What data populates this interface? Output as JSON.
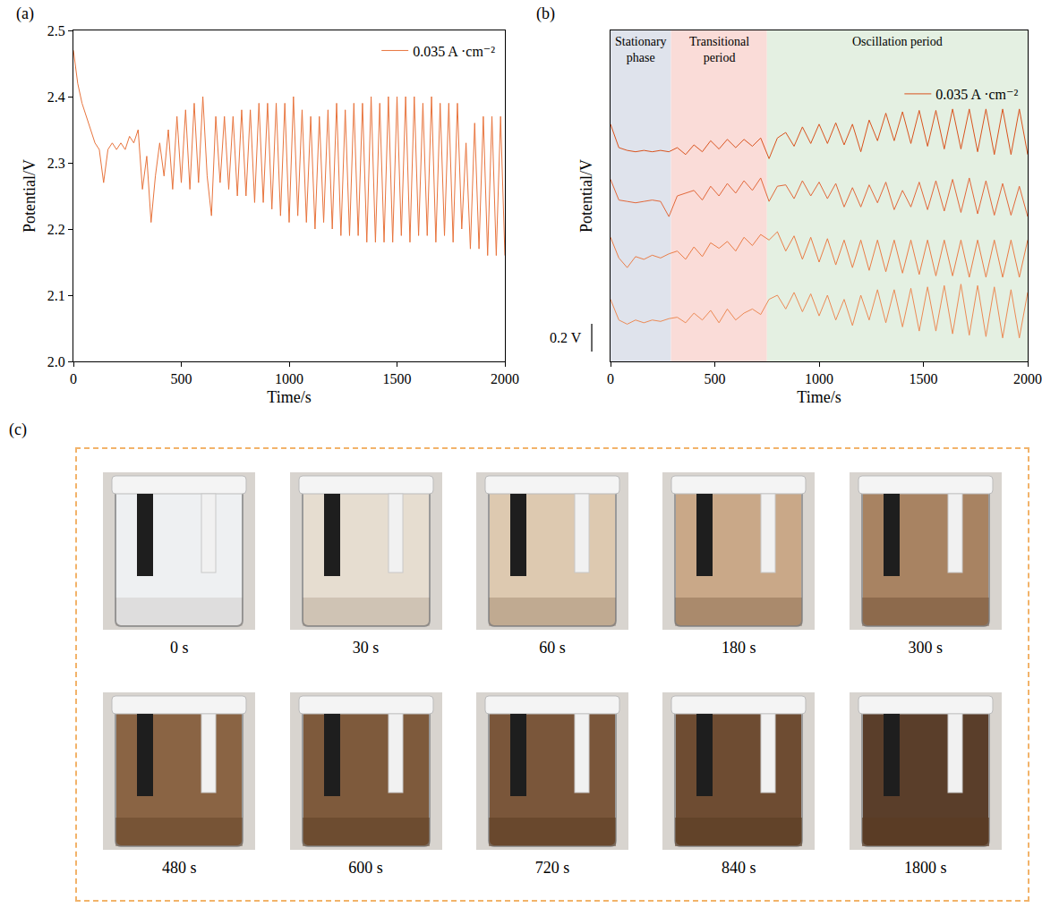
{
  "chart_data": [
    {
      "type": "line",
      "panel_label": "(a)",
      "x": [
        0,
        20,
        40,
        60,
        80,
        100,
        120,
        140,
        160,
        180,
        200,
        220,
        240,
        260,
        280,
        300,
        320,
        340,
        360,
        380,
        400,
        420,
        440,
        460,
        480,
        500,
        520,
        540,
        560,
        580,
        600,
        620,
        640,
        660,
        680,
        700,
        720,
        740,
        760,
        780,
        800,
        820,
        840,
        860,
        880,
        900,
        920,
        940,
        960,
        980,
        1000,
        1020,
        1040,
        1060,
        1080,
        1100,
        1120,
        1140,
        1160,
        1180,
        1200,
        1220,
        1240,
        1260,
        1280,
        1300,
        1320,
        1340,
        1360,
        1380,
        1400,
        1420,
        1440,
        1460,
        1480,
        1500,
        1520,
        1540,
        1560,
        1580,
        1600,
        1620,
        1640,
        1660,
        1680,
        1700,
        1720,
        1740,
        1760,
        1780,
        1800,
        1820,
        1840,
        1860,
        1880,
        1900,
        1920,
        1940,
        1960,
        1980,
        2000
      ],
      "series": [
        {
          "name": "0.035 A ·cm⁻²",
          "color": "#e8743d",
          "values": [
            2.47,
            2.42,
            2.39,
            2.37,
            2.35,
            2.33,
            2.32,
            2.27,
            2.32,
            2.33,
            2.32,
            2.33,
            2.32,
            2.34,
            2.33,
            2.35,
            2.26,
            2.31,
            2.21,
            2.28,
            2.33,
            2.28,
            2.35,
            2.26,
            2.37,
            2.27,
            2.38,
            2.26,
            2.39,
            2.27,
            2.4,
            2.28,
            2.22,
            2.37,
            2.27,
            2.37,
            2.26,
            2.37,
            2.25,
            2.38,
            2.25,
            2.38,
            2.24,
            2.39,
            2.24,
            2.39,
            2.23,
            2.39,
            2.22,
            2.39,
            2.21,
            2.4,
            2.22,
            2.38,
            2.21,
            2.37,
            2.2,
            2.37,
            2.21,
            2.38,
            2.2,
            2.39,
            2.19,
            2.38,
            2.19,
            2.39,
            2.19,
            2.39,
            2.18,
            2.4,
            2.18,
            2.39,
            2.18,
            2.4,
            2.18,
            2.4,
            2.19,
            2.4,
            2.18,
            2.4,
            2.19,
            2.39,
            2.19,
            2.4,
            2.18,
            2.39,
            2.19,
            2.39,
            2.18,
            2.39,
            2.2,
            2.33,
            2.17,
            2.36,
            2.17,
            2.37,
            2.16,
            2.37,
            2.16,
            2.37,
            2.16
          ]
        }
      ],
      "xlabel": "Time/s",
      "ylabel": "Potential/V",
      "xlim": [
        0,
        2000
      ],
      "ylim": [
        2.0,
        2.5
      ],
      "xticks": [
        0,
        500,
        1000,
        1500,
        2000
      ],
      "yticks": [
        {
          "value": 2,
          "label": "2.0"
        },
        2.1,
        2.2,
        2.3,
        2.4,
        {
          "value": 2.5,
          "label": "2.5"
        }
      ],
      "grid": false,
      "legend": "upper right"
    },
    {
      "type": "line",
      "panel_label": "(b)",
      "x": [
        0,
        40,
        80,
        120,
        160,
        200,
        240,
        280,
        320,
        360,
        400,
        440,
        480,
        520,
        560,
        600,
        640,
        680,
        720,
        760,
        800,
        840,
        880,
        920,
        960,
        1000,
        1040,
        1080,
        1120,
        1160,
        1200,
        1240,
        1280,
        1320,
        1360,
        1400,
        1440,
        1480,
        1520,
        1560,
        1600,
        1640,
        1680,
        1720,
        1760,
        1800,
        1840,
        1880,
        1920,
        1960,
        2000
      ],
      "series": [
        {
          "name": "0.035 A ·cm⁻²",
          "color": "#d9531e",
          "values": [
            1.72,
            1.55,
            1.53,
            1.52,
            1.53,
            1.52,
            1.53,
            1.52,
            1.55,
            1.5,
            1.57,
            1.52,
            1.6,
            1.54,
            1.61,
            1.55,
            1.61,
            1.56,
            1.62,
            1.47,
            1.62,
            1.66,
            1.56,
            1.7,
            1.58,
            1.72,
            1.58,
            1.73,
            1.57,
            1.72,
            1.52,
            1.75,
            1.6,
            1.8,
            1.6,
            1.81,
            1.58,
            1.82,
            1.56,
            1.82,
            1.54,
            1.83,
            1.54,
            1.83,
            1.52,
            1.83,
            1.5,
            1.83,
            1.5,
            1.83,
            1.5
          ]
        },
        {
          "name": "0.035 A ·cm⁻²",
          "color": "#e2683a",
          "values": [
            1.32,
            1.17,
            1.16,
            1.15,
            1.16,
            1.17,
            1.16,
            1.05,
            1.2,
            1.22,
            1.24,
            1.17,
            1.27,
            1.2,
            1.29,
            1.22,
            1.31,
            1.24,
            1.33,
            1.16,
            1.27,
            1.28,
            1.18,
            1.31,
            1.2,
            1.3,
            1.18,
            1.29,
            1.12,
            1.26,
            1.12,
            1.28,
            1.15,
            1.3,
            1.1,
            1.24,
            1.12,
            1.3,
            1.1,
            1.31,
            1.09,
            1.32,
            1.08,
            1.33,
            1.07,
            1.31,
            1.06,
            1.29,
            1.06,
            1.27,
            1.05
          ]
        },
        {
          "name": "0.035 A ·cm⁻²",
          "color": "#ea7d47",
          "values": [
            0.9,
            0.75,
            0.68,
            0.76,
            0.74,
            0.77,
            0.75,
            0.78,
            0.8,
            0.74,
            0.83,
            0.76,
            0.86,
            0.82,
            0.87,
            0.8,
            0.9,
            0.84,
            0.92,
            0.88,
            0.94,
            0.8,
            0.91,
            0.74,
            0.9,
            0.72,
            0.89,
            0.7,
            0.88,
            0.68,
            0.88,
            0.66,
            0.88,
            0.65,
            0.88,
            0.64,
            0.88,
            0.63,
            0.88,
            0.62,
            0.88,
            0.62,
            0.88,
            0.61,
            0.88,
            0.61,
            0.88,
            0.61,
            0.88,
            0.61,
            0.88
          ]
        },
        {
          "name": "0.035 A ·cm⁻²",
          "color": "#ec8a55",
          "values": [
            0.45,
            0.3,
            0.27,
            0.3,
            0.28,
            0.3,
            0.29,
            0.31,
            0.32,
            0.28,
            0.35,
            0.3,
            0.37,
            0.28,
            0.38,
            0.3,
            0.35,
            0.38,
            0.34,
            0.45,
            0.48,
            0.38,
            0.5,
            0.36,
            0.49,
            0.33,
            0.48,
            0.3,
            0.45,
            0.26,
            0.48,
            0.3,
            0.52,
            0.28,
            0.52,
            0.25,
            0.53,
            0.22,
            0.54,
            0.22,
            0.55,
            0.2,
            0.56,
            0.19,
            0.55,
            0.18,
            0.54,
            0.17,
            0.52,
            0.17,
            0.5
          ]
        }
      ],
      "xlabel": "Time/s",
      "ylabel": "Potential/V",
      "xlim": [
        0,
        2000
      ],
      "ylim": [
        0,
        2.4
      ],
      "xticks": [
        0,
        500,
        1000,
        1500,
        2000
      ],
      "tick_labels": "x",
      "grid": false,
      "legend": "upper right",
      "regions": [
        {
          "label": "Stationary phase",
          "x0": 0,
          "x1": 290,
          "color": "#dfe3ec"
        },
        {
          "label": "Transitional period",
          "x0": 290,
          "x1": 750,
          "color": "#fadcd8"
        },
        {
          "label": "Oscillation period",
          "x0": 750,
          "x1": 2000,
          "color": "#e4f0e2"
        }
      ],
      "scale_bar": {
        "length": 0.2,
        "label": "0.2 V"
      }
    }
  ],
  "panel_c": {
    "panel_label": "(c)",
    "photos": [
      {
        "caption": "0 s"
      },
      {
        "caption": "30 s"
      },
      {
        "caption": "60 s"
      },
      {
        "caption": "180 s"
      },
      {
        "caption": "300 s"
      },
      {
        "caption": "480 s"
      },
      {
        "caption": "600 s"
      },
      {
        "caption": "720 s"
      },
      {
        "caption": "840 s"
      },
      {
        "caption": "1800 s"
      }
    ]
  }
}
